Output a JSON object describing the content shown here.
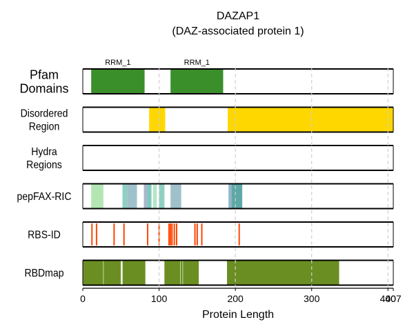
{
  "chart_data": {
    "type": "track",
    "title_line1": "DAZAP1",
    "title_line2": "(DAZ-associated protein 1)",
    "xlabel": "Protein Length",
    "xlim": [
      0,
      407
    ],
    "xticks": [
      0,
      100,
      200,
      300,
      400,
      407
    ],
    "xtick_labels": [
      "0",
      "100",
      "200",
      "300",
      "400",
      "407"
    ],
    "grid_x": [
      100,
      200,
      300,
      400
    ],
    "tracks": [
      {
        "label_lines": [
          "Pfam",
          "Domains"
        ],
        "segments": [
          {
            "start": 11,
            "end": 81,
            "color": "#3a8f2a",
            "label": "RRM_1"
          },
          {
            "start": 115,
            "end": 184,
            "color": "#3a8f2a",
            "label": "RRM_1"
          }
        ]
      },
      {
        "label_lines": [
          "Disordered",
          "Region"
        ],
        "segments": [
          {
            "start": 87,
            "end": 108,
            "color": "#ffd700"
          },
          {
            "start": 190,
            "end": 407,
            "color": "#ffd700"
          }
        ]
      },
      {
        "label_lines": [
          "Hydra",
          "Regions"
        ],
        "segments": []
      },
      {
        "label_lines": [
          "pepFAX-RIC"
        ],
        "segments": [
          {
            "start": 11,
            "end": 27,
            "color": "#b4e6b4"
          },
          {
            "start": 52,
            "end": 58,
            "color": "#8fd1c1"
          },
          {
            "start": 58,
            "end": 71,
            "color": "#9fc1cc"
          },
          {
            "start": 80,
            "end": 85,
            "color": "#a8b8cc"
          },
          {
            "start": 85,
            "end": 90,
            "color": "#7ccbbb"
          },
          {
            "start": 92,
            "end": 97,
            "color": "#b4e6c8"
          },
          {
            "start": 100,
            "end": 107,
            "color": "#8fd1c1"
          },
          {
            "start": 115,
            "end": 129,
            "color": "#9fc1cc"
          },
          {
            "start": 191,
            "end": 195,
            "color": "#8fb8cc"
          },
          {
            "start": 195,
            "end": 209,
            "color": "#5fa8a8"
          }
        ]
      },
      {
        "label_lines": [
          "RBS-ID"
        ],
        "ticks": [
          12,
          18,
          41,
          54,
          85,
          100,
          113,
          115,
          117,
          120,
          123,
          147,
          150,
          156,
          205
        ],
        "tick_color": "#ff4500"
      },
      {
        "label_lines": [
          "RBDmap"
        ],
        "segments": [
          {
            "start": 0,
            "end": 50,
            "color": "#6b8e23"
          },
          {
            "start": 52,
            "end": 82,
            "color": "#6b8e23"
          },
          {
            "start": 107,
            "end": 152,
            "color": "#6b8e23"
          },
          {
            "start": 189,
            "end": 336,
            "color": "#6b8e23"
          }
        ],
        "dividers": [
          27,
          50,
          52,
          128,
          131
        ]
      }
    ]
  }
}
